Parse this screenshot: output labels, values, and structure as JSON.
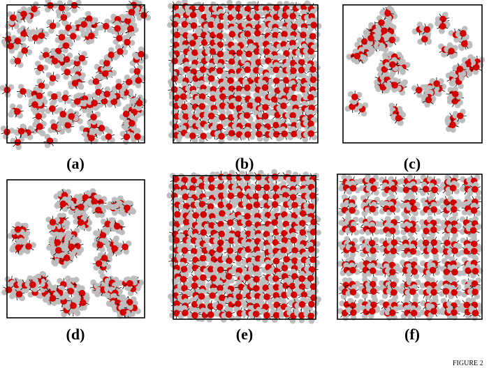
{
  "panels": [
    {
      "label": "(a)"
    },
    {
      "label": "(b)"
    },
    {
      "label": "(c)"
    },
    {
      "label": "(d)"
    },
    {
      "label": "(e)"
    },
    {
      "label": "(f)"
    }
  ],
  "figure_label": "FIGURE 2"
}
